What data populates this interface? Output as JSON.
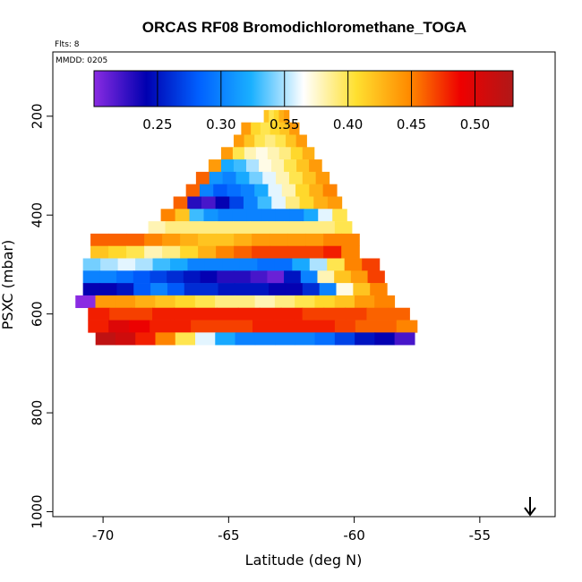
{
  "chart_data": {
    "type": "heatmap",
    "title": "ORCAS RF08 Bromodichloromethane_TOGA",
    "flights_label": "Flts: 8",
    "date_label": "MMDD: 0205",
    "xlabel": "Latitude (deg N)",
    "ylabel": "PSXC (mbar)",
    "xlim": [
      -72,
      -52
    ],
    "ylim": [
      1010,
      70
    ],
    "x_ticks": [
      -70,
      -65,
      -60,
      -55
    ],
    "y_ticks": [
      200,
      400,
      600,
      800,
      1000
    ],
    "colorbar": {
      "range": [
        0.2,
        0.53
      ],
      "ticks": [
        0.25,
        0.3,
        0.35,
        0.4,
        0.45,
        0.5
      ],
      "colors": [
        "#8a2be2",
        "#0000b0",
        "#0060ff",
        "#1ab0ff",
        "#ffffff",
        "#ffe030",
        "#ff8c00",
        "#ee0000",
        "#b01818"
      ]
    },
    "rows": [
      {
        "p": 200,
        "x0": -63.6,
        "x1": -62.6,
        "v": [
          0.42,
          0.4,
          0.41,
          0.43,
          0.44
        ]
      },
      {
        "p": 225,
        "x0": -64.5,
        "x1": -62.2,
        "v": [
          0.44,
          0.41,
          0.4,
          0.41,
          0.42,
          0.44
        ]
      },
      {
        "p": 250,
        "x0": -64.8,
        "x1": -61.9,
        "v": [
          0.44,
          0.42,
          0.4,
          0.39,
          0.4,
          0.42,
          0.44
        ]
      },
      {
        "p": 275,
        "x0": -65.3,
        "x1": -61.6,
        "v": [
          0.44,
          0.4,
          0.38,
          0.37,
          0.38,
          0.39,
          0.41,
          0.43
        ]
      },
      {
        "p": 300,
        "x0": -65.8,
        "x1": -61.3,
        "v": [
          0.44,
          0.32,
          0.33,
          0.35,
          0.37,
          0.38,
          0.4,
          0.42,
          0.44
        ]
      },
      {
        "p": 325,
        "x0": -66.3,
        "x1": -61.0,
        "v": [
          0.46,
          0.31,
          0.3,
          0.32,
          0.34,
          0.36,
          0.38,
          0.4,
          0.42,
          0.44
        ]
      },
      {
        "p": 350,
        "x0": -66.7,
        "x1": -60.7,
        "v": [
          0.46,
          0.3,
          0.28,
          0.29,
          0.3,
          0.32,
          0.36,
          0.38,
          0.41,
          0.43,
          0.45
        ]
      },
      {
        "p": 375,
        "x0": -67.2,
        "x1": -60.5,
        "v": [
          0.46,
          0.23,
          0.22,
          0.24,
          0.27,
          0.3,
          0.33,
          0.36,
          0.39,
          0.41,
          0.43,
          0.44
        ]
      },
      {
        "p": 400,
        "x0": -67.7,
        "x1": -60.3,
        "v": [
          0.45,
          0.42,
          0.33,
          0.31,
          0.3,
          0.3,
          0.3,
          0.3,
          0.3,
          0.3,
          0.32,
          0.36,
          0.4
        ]
      },
      {
        "p": 425,
        "x0": -68.2,
        "x1": -60.1,
        "v": [
          0.38,
          0.39,
          0.39,
          0.39,
          0.39,
          0.39,
          0.39,
          0.39,
          0.39,
          0.39,
          0.39,
          0.4
        ]
      },
      {
        "p": 450,
        "x0": -70.5,
        "x1": -59.8,
        "v": [
          0.46,
          0.46,
          0.46,
          0.45,
          0.44,
          0.43,
          0.42,
          0.42,
          0.43,
          0.44,
          0.44,
          0.44,
          0.44,
          0.45,
          0.45
        ]
      },
      {
        "p": 475,
        "x0": -70.5,
        "x1": -59.8,
        "v": [
          0.42,
          0.41,
          0.4,
          0.38,
          0.39,
          0.41,
          0.43,
          0.45,
          0.46,
          0.47,
          0.47,
          0.47,
          0.47,
          0.48,
          0.45
        ]
      },
      {
        "p": 500,
        "x0": -70.8,
        "x1": -59.0,
        "v": [
          0.34,
          0.35,
          0.36,
          0.35,
          0.33,
          0.32,
          0.3,
          0.3,
          0.3,
          0.3,
          0.29,
          0.29,
          0.32,
          0.35,
          0.4,
          0.45,
          0.47
        ]
      },
      {
        "p": 525,
        "x0": -70.8,
        "x1": -58.8,
        "v": [
          0.3,
          0.3,
          0.29,
          0.28,
          0.27,
          0.26,
          0.25,
          0.24,
          0.23,
          0.23,
          0.22,
          0.21,
          0.25,
          0.3,
          0.38,
          0.42,
          0.44,
          0.47
        ]
      },
      {
        "p": 550,
        "x0": -70.8,
        "x1": -58.7,
        "v": [
          0.24,
          0.24,
          0.25,
          0.28,
          0.3,
          0.28,
          0.26,
          0.26,
          0.25,
          0.25,
          0.25,
          0.24,
          0.24,
          0.26,
          0.3,
          0.37,
          0.42,
          0.45
        ]
      },
      {
        "p": 575,
        "x0": -71.1,
        "x1": -58.4,
        "v": [
          0.2,
          0.44,
          0.44,
          0.43,
          0.42,
          0.41,
          0.4,
          0.39,
          0.39,
          0.38,
          0.39,
          0.4,
          0.41,
          0.42,
          0.44,
          0.45
        ]
      },
      {
        "p": 600,
        "x0": -70.6,
        "x1": -57.8,
        "v": [
          0.48,
          0.47,
          0.47,
          0.48,
          0.48,
          0.48,
          0.48,
          0.48,
          0.48,
          0.48,
          0.47,
          0.47,
          0.47,
          0.46,
          0.46
        ]
      },
      {
        "p": 625,
        "x0": -70.6,
        "x1": -57.5,
        "v": [
          0.48,
          0.5,
          0.49,
          0.48,
          0.48,
          0.47,
          0.47,
          0.47,
          0.48,
          0.48,
          0.48,
          0.48,
          0.47,
          0.46,
          0.46,
          0.45
        ]
      },
      {
        "p": 650,
        "x0": -70.3,
        "x1": -57.6,
        "v": [
          0.52,
          0.51,
          0.48,
          0.45,
          0.4,
          0.36,
          0.32,
          0.3,
          0.3,
          0.3,
          0.3,
          0.29,
          0.27,
          0.25,
          0.24,
          0.22
        ]
      }
    ]
  }
}
